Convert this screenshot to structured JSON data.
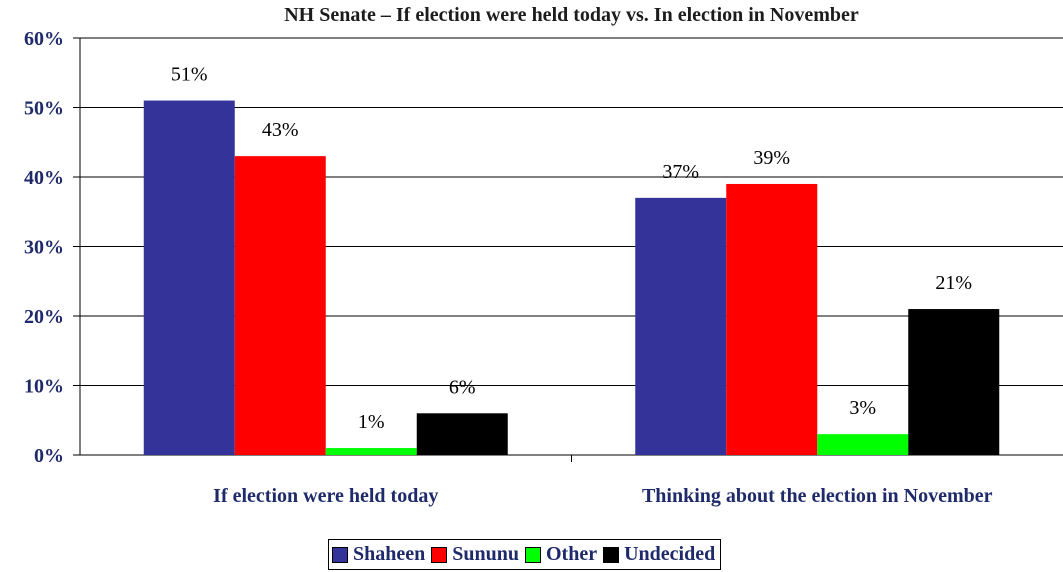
{
  "colors": {
    "Shaheen": "#333399",
    "Sununu": "#ff0000",
    "Other": "#00ff00",
    "Undecided": "#000000",
    "axis_text": "#1f2a6b"
  },
  "chart_data": {
    "type": "bar",
    "title": "NH Senate – If election were held today vs. In election in November",
    "xlabel": "",
    "ylabel": "",
    "ylim": [
      0,
      60
    ],
    "yticks": [
      "0%",
      "10%",
      "20%",
      "30%",
      "40%",
      "50%",
      "60%"
    ],
    "grid": true,
    "legend_position": "bottom",
    "categories": [
      "If election were held today",
      "Thinking about the election in November"
    ],
    "series": [
      {
        "name": "Shaheen",
        "values": [
          51,
          37
        ],
        "labels": [
          "51%",
          "37%"
        ]
      },
      {
        "name": "Sununu",
        "values": [
          43,
          39
        ],
        "labels": [
          "43%",
          "39%"
        ]
      },
      {
        "name": "Other",
        "values": [
          1,
          3
        ],
        "labels": [
          "1%",
          "3%"
        ]
      },
      {
        "name": "Undecided",
        "values": [
          6,
          21
        ],
        "labels": [
          "6%",
          "21%"
        ]
      }
    ]
  }
}
